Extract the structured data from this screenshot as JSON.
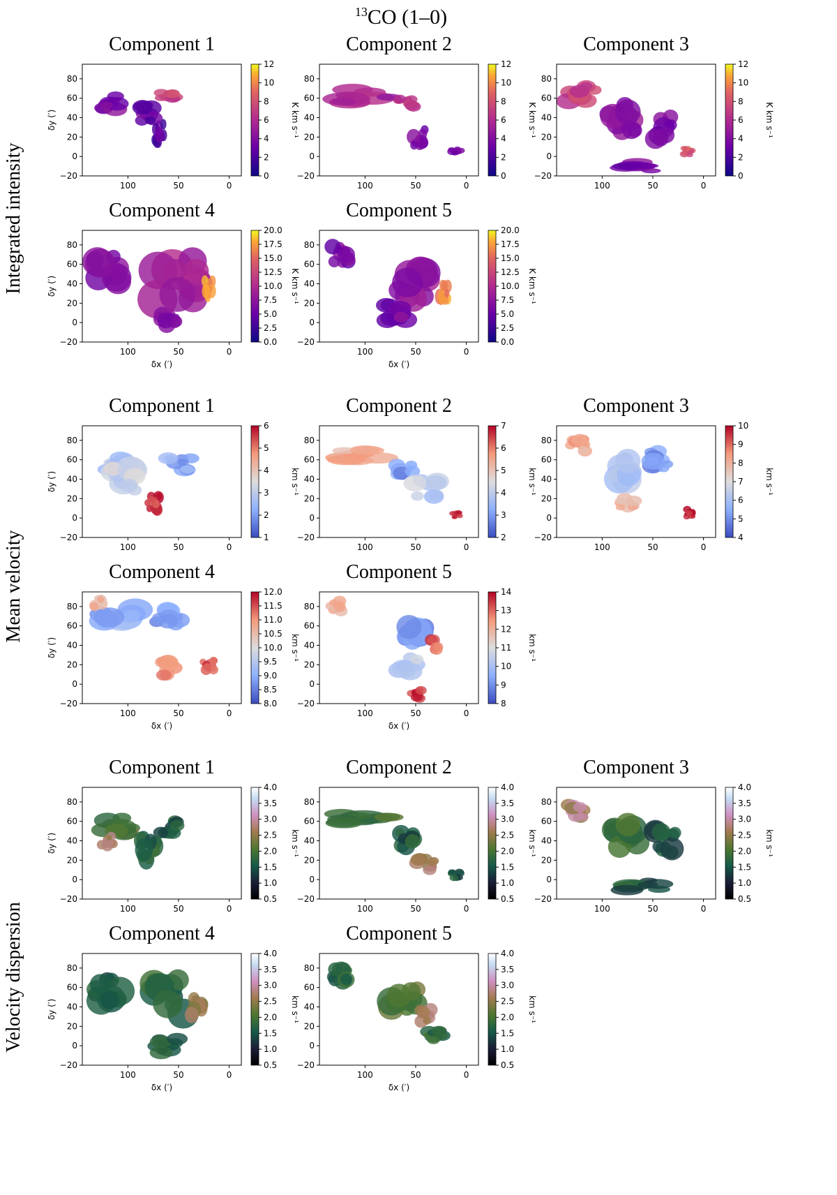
{
  "figure": {
    "title_sup": "13",
    "title_main": "CO (1–0)",
    "rows": [
      {
        "id": "integrated",
        "label": "Integrated intensity"
      },
      {
        "id": "velocity",
        "label": "Mean velocity"
      },
      {
        "id": "dispersion",
        "label": "Velocity dispersion"
      }
    ]
  },
  "chart_data": [
    {
      "type": "heatmap",
      "group": "integrated",
      "title": "Component 1",
      "xlabel": "δx (′)",
      "ylabel": "δy (′)",
      "xlim": [
        145,
        -12
      ],
      "ylim": [
        -20,
        95
      ],
      "xticks": [
        100,
        50,
        0
      ],
      "yticks": [
        -20,
        0,
        20,
        40,
        60,
        80
      ],
      "colormap": "plasma",
      "cbar": {
        "label": "K km s⁻¹",
        "range": [
          0,
          12
        ],
        "ticks": [
          "0",
          "2",
          "4",
          "6",
          "8",
          "10",
          "12"
        ]
      },
      "show_xlabel": false,
      "show_ylabel": true,
      "blobs": [
        [
          120,
          55,
          20,
          12,
          0.3
        ],
        [
          60,
          62,
          14,
          8,
          0.6
        ],
        [
          85,
          45,
          18,
          14,
          0.25
        ],
        [
          70,
          25,
          10,
          18,
          0.2
        ]
      ]
    },
    {
      "type": "heatmap",
      "group": "integrated",
      "title": "Component 2",
      "xlabel": "δx (′)",
      "ylabel": "δy (′)",
      "xlim": [
        145,
        -12
      ],
      "ylim": [
        -20,
        95
      ],
      "xticks": [
        100,
        50,
        0
      ],
      "yticks": [
        -20,
        0,
        20,
        40,
        60,
        80
      ],
      "colormap": "plasma",
      "cbar": {
        "label": "K km s⁻¹",
        "range": [
          0,
          12
        ],
        "ticks": [
          "0",
          "2",
          "4",
          "6",
          "8",
          "10",
          "12"
        ]
      },
      "show_xlabel": false,
      "show_ylabel": false,
      "blobs": [
        [
          100,
          62,
          40,
          12,
          0.45
        ],
        [
          60,
          55,
          14,
          10,
          0.55
        ],
        [
          45,
          20,
          12,
          14,
          0.3
        ],
        [
          10,
          5,
          8,
          6,
          0.3
        ]
      ]
    },
    {
      "type": "heatmap",
      "group": "integrated",
      "title": "Component 3",
      "xlabel": "δx (′)",
      "ylabel": "δy (′)",
      "xlim": [
        145,
        -12
      ],
      "ylim": [
        -20,
        95
      ],
      "xticks": [
        100,
        50,
        0
      ],
      "yticks": [
        -20,
        0,
        20,
        40,
        60,
        80
      ],
      "colormap": "plasma",
      "cbar": {
        "label": "K km s⁻¹",
        "range": [
          0,
          12
        ],
        "ticks": [
          "0",
          "2",
          "4",
          "6",
          "8",
          "10",
          "12"
        ]
      },
      "show_xlabel": false,
      "show_ylabel": false,
      "blobs": [
        [
          120,
          65,
          22,
          15,
          0.6
        ],
        [
          80,
          40,
          25,
          25,
          0.35
        ],
        [
          40,
          30,
          20,
          20,
          0.3
        ],
        [
          15,
          5,
          8,
          6,
          0.7
        ],
        [
          60,
          -10,
          30,
          8,
          0.3
        ]
      ]
    },
    {
      "type": "heatmap",
      "group": "integrated",
      "title": "Component 4",
      "xlabel": "δx (′)",
      "ylabel": "δy (′)",
      "xlim": [
        145,
        -12
      ],
      "ylim": [
        -20,
        95
      ],
      "xticks": [
        100,
        50,
        0
      ],
      "yticks": [
        -20,
        0,
        20,
        40,
        60,
        80
      ],
      "colormap": "plasma",
      "cbar": {
        "label": "K km s⁻¹",
        "range": [
          0,
          20
        ],
        "ticks": [
          "0.0",
          "2.5",
          "5.0",
          "7.5",
          "10.0",
          "12.5",
          "15.0",
          "17.5",
          "20.0"
        ]
      },
      "show_xlabel": true,
      "show_ylabel": true,
      "blobs": [
        [
          120,
          55,
          25,
          25,
          0.3
        ],
        [
          50,
          45,
          35,
          35,
          0.45
        ],
        [
          20,
          35,
          8,
          14,
          0.85
        ],
        [
          60,
          5,
          15,
          15,
          0.3
        ]
      ]
    },
    {
      "type": "heatmap",
      "group": "integrated",
      "title": "Component 5",
      "xlabel": "δx (′)",
      "ylabel": "δy (′)",
      "xlim": [
        145,
        -12
      ],
      "ylim": [
        -20,
        95
      ],
      "xticks": [
        100,
        50,
        0
      ],
      "yticks": [
        -20,
        0,
        20,
        40,
        60,
        80
      ],
      "colormap": "plasma",
      "cbar": {
        "label": "K km s⁻¹",
        "range": [
          0,
          20
        ],
        "ticks": [
          "0.0",
          "2.5",
          "5.0",
          "7.5",
          "10.0",
          "12.5",
          "15.0",
          "17.5",
          "20.0"
        ]
      },
      "show_xlabel": true,
      "show_ylabel": false,
      "blobs": [
        [
          125,
          70,
          15,
          15,
          0.3
        ],
        [
          50,
          40,
          30,
          30,
          0.4
        ],
        [
          22,
          30,
          8,
          14,
          0.85
        ],
        [
          70,
          10,
          20,
          15,
          0.3
        ]
      ]
    },
    {
      "type": "heatmap",
      "group": "velocity",
      "title": "Component 1",
      "xlabel": "δx (′)",
      "ylabel": "δy (′)",
      "xlim": [
        145,
        -12
      ],
      "ylim": [
        -20,
        95
      ],
      "xticks": [
        100,
        50,
        0
      ],
      "yticks": [
        -20,
        0,
        20,
        40,
        60,
        80
      ],
      "colormap": "coolwarm",
      "cbar": {
        "label": "km s⁻¹",
        "range": [
          1,
          6
        ],
        "ticks": [
          "1",
          "2",
          "3",
          "4",
          "5",
          "6"
        ]
      },
      "show_xlabel": false,
      "show_ylabel": true,
      "blobs": [
        [
          110,
          55,
          20,
          12,
          0.35
        ],
        [
          50,
          55,
          20,
          12,
          0.25
        ],
        [
          75,
          15,
          10,
          12,
          0.92
        ],
        [
          100,
          40,
          25,
          20,
          0.45
        ]
      ]
    },
    {
      "type": "heatmap",
      "group": "velocity",
      "title": "Component 2",
      "xlabel": "δx (′)",
      "ylabel": "δy (′)",
      "xlim": [
        145,
        -12
      ],
      "ylim": [
        -20,
        95
      ],
      "xticks": [
        100,
        50,
        0
      ],
      "yticks": [
        -20,
        0,
        20,
        40,
        60,
        80
      ],
      "colormap": "coolwarm",
      "cbar": {
        "label": "km s⁻¹",
        "range": [
          2,
          7
        ],
        "ticks": [
          "2",
          "3",
          "4",
          "5",
          "6",
          "7"
        ]
      },
      "show_xlabel": false,
      "show_ylabel": false,
      "blobs": [
        [
          100,
          65,
          35,
          10,
          0.68
        ],
        [
          60,
          50,
          15,
          12,
          0.2
        ],
        [
          40,
          30,
          20,
          15,
          0.4
        ],
        [
          10,
          3,
          7,
          5,
          0.95
        ]
      ]
    },
    {
      "type": "heatmap",
      "group": "velocity",
      "title": "Component 3",
      "xlabel": "δx (′)",
      "ylabel": "δy (′)",
      "xlim": [
        145,
        -12
      ],
      "ylim": [
        -20,
        95
      ],
      "xticks": [
        100,
        50,
        0
      ],
      "yticks": [
        -20,
        0,
        20,
        40,
        60,
        80
      ],
      "colormap": "coolwarm",
      "cbar": {
        "label": "km s⁻¹",
        "range": [
          4,
          10
        ],
        "ticks": [
          "4",
          "5",
          "6",
          "7",
          "8",
          "9",
          "10"
        ]
      },
      "show_xlabel": false,
      "show_ylabel": false,
      "blobs": [
        [
          125,
          75,
          15,
          12,
          0.7
        ],
        [
          80,
          50,
          25,
          25,
          0.35
        ],
        [
          40,
          60,
          20,
          15,
          0.2
        ],
        [
          75,
          15,
          15,
          10,
          0.65
        ],
        [
          15,
          5,
          8,
          7,
          0.95
        ]
      ]
    },
    {
      "type": "heatmap",
      "group": "velocity",
      "title": "Component 4",
      "xlabel": "δx (′)",
      "ylabel": "δy (′)",
      "xlim": [
        145,
        -12
      ],
      "ylim": [
        -20,
        95
      ],
      "xticks": [
        100,
        50,
        0
      ],
      "yticks": [
        -20,
        0,
        20,
        40,
        60,
        80
      ],
      "colormap": "coolwarm",
      "cbar": {
        "label": "km s⁻¹",
        "range": [
          8,
          12
        ],
        "ticks": [
          "8.0",
          "8.5",
          "9.0",
          "9.5",
          "10.0",
          "10.5",
          "11.0",
          "11.5",
          "12.0"
        ]
      },
      "show_xlabel": true,
      "show_ylabel": true,
      "blobs": [
        [
          110,
          65,
          30,
          20,
          0.25
        ],
        [
          60,
          70,
          20,
          15,
          0.2
        ],
        [
          55,
          15,
          20,
          15,
          0.75
        ],
        [
          20,
          20,
          10,
          10,
          0.9
        ],
        [
          130,
          85,
          10,
          10,
          0.65
        ]
      ]
    },
    {
      "type": "heatmap",
      "group": "velocity",
      "title": "Component 5",
      "xlabel": "δx (′)",
      "ylabel": "δy (′)",
      "xlim": [
        145,
        -12
      ],
      "ylim": [
        -20,
        95
      ],
      "xticks": [
        100,
        50,
        0
      ],
      "yticks": [
        -20,
        0,
        20,
        40,
        60,
        80
      ],
      "colormap": "coolwarm",
      "cbar": {
        "label": "km s⁻¹",
        "range": [
          8,
          14
        ],
        "ticks": [
          "8",
          "9",
          "10",
          "11",
          "12",
          "13",
          "14"
        ]
      },
      "show_xlabel": true,
      "show_ylabel": false,
      "blobs": [
        [
          130,
          80,
          12,
          10,
          0.65
        ],
        [
          50,
          55,
          25,
          25,
          0.2
        ],
        [
          30,
          40,
          10,
          10,
          0.85
        ],
        [
          60,
          20,
          20,
          15,
          0.4
        ],
        [
          50,
          -10,
          10,
          8,
          0.9
        ]
      ]
    },
    {
      "type": "heatmap",
      "group": "dispersion",
      "title": "Component 1",
      "xlabel": "δx (′)",
      "ylabel": "δy (′)",
      "xlim": [
        145,
        -12
      ],
      "ylim": [
        -20,
        95
      ],
      "xticks": [
        100,
        50,
        0
      ],
      "yticks": [
        -20,
        0,
        20,
        40,
        60,
        80
      ],
      "colormap": "cubehelix",
      "cbar": {
        "label": "km s⁻¹",
        "range": [
          0.5,
          4.0
        ],
        "ticks": [
          "0.5",
          "1.0",
          "1.5",
          "2.0",
          "2.5",
          "3.0",
          "3.5",
          "4.0"
        ]
      },
      "show_xlabel": false,
      "show_ylabel": true,
      "blobs": [
        [
          110,
          55,
          25,
          15,
          0.45
        ],
        [
          60,
          55,
          15,
          12,
          0.3
        ],
        [
          80,
          30,
          15,
          20,
          0.35
        ],
        [
          120,
          40,
          10,
          10,
          0.65
        ]
      ]
    },
    {
      "type": "heatmap",
      "group": "dispersion",
      "title": "Component 2",
      "xlabel": "δx (′)",
      "ylabel": "δy (′)",
      "xlim": [
        145,
        -12
      ],
      "ylim": [
        -20,
        95
      ],
      "xticks": [
        100,
        50,
        0
      ],
      "yticks": [
        -20,
        0,
        20,
        40,
        60,
        80
      ],
      "colormap": "cubehelix",
      "cbar": {
        "label": "km s⁻¹",
        "range": [
          0.5,
          4.0
        ],
        "ticks": [
          "0.5",
          "1.0",
          "1.5",
          "2.0",
          "2.5",
          "3.0",
          "3.5",
          "4.0"
        ]
      },
      "show_xlabel": false,
      "show_ylabel": false,
      "blobs": [
        [
          100,
          65,
          40,
          12,
          0.45
        ],
        [
          60,
          40,
          15,
          15,
          0.3
        ],
        [
          40,
          15,
          15,
          12,
          0.6
        ],
        [
          10,
          5,
          8,
          6,
          0.3
        ]
      ]
    },
    {
      "type": "heatmap",
      "group": "dispersion",
      "title": "Component 3",
      "xlabel": "δx (′)",
      "ylabel": "δy (′)",
      "xlim": [
        145,
        -12
      ],
      "ylim": [
        -20,
        95
      ],
      "xticks": [
        100,
        50,
        0
      ],
      "yticks": [
        -20,
        0,
        20,
        40,
        60,
        80
      ],
      "colormap": "cubehelix",
      "cbar": {
        "label": "km s⁻¹",
        "range": [
          0.5,
          4.0
        ],
        "ticks": [
          "0.5",
          "1.0",
          "1.5",
          "2.0",
          "2.5",
          "3.0",
          "3.5",
          "4.0"
        ]
      },
      "show_xlabel": false,
      "show_ylabel": false,
      "blobs": [
        [
          125,
          70,
          15,
          12,
          0.65
        ],
        [
          80,
          45,
          25,
          25,
          0.4
        ],
        [
          40,
          40,
          20,
          20,
          0.3
        ],
        [
          60,
          -5,
          30,
          10,
          0.3
        ]
      ]
    },
    {
      "type": "heatmap",
      "group": "dispersion",
      "title": "Component 4",
      "xlabel": "δx (′)",
      "ylabel": "δy (′)",
      "xlim": [
        145,
        -12
      ],
      "ylim": [
        -20,
        95
      ],
      "xticks": [
        100,
        50,
        0
      ],
      "yticks": [
        -20,
        0,
        20,
        40,
        60,
        80
      ],
      "colormap": "cubehelix",
      "cbar": {
        "label": "km s⁻¹",
        "range": [
          0.5,
          4.0
        ],
        "ticks": [
          "0.5",
          "1.0",
          "1.5",
          "2.0",
          "2.5",
          "3.0",
          "3.5",
          "4.0"
        ]
      },
      "show_xlabel": true,
      "show_ylabel": true,
      "blobs": [
        [
          120,
          60,
          25,
          25,
          0.3
        ],
        [
          60,
          50,
          30,
          30,
          0.35
        ],
        [
          30,
          40,
          12,
          15,
          0.55
        ],
        [
          60,
          0,
          20,
          12,
          0.3
        ]
      ]
    },
    {
      "type": "heatmap",
      "group": "dispersion",
      "title": "Component 5",
      "xlabel": "δx (′)",
      "ylabel": "δy (′)",
      "xlim": [
        145,
        -12
      ],
      "ylim": [
        -20,
        95
      ],
      "xticks": [
        100,
        50,
        0
      ],
      "yticks": [
        -20,
        0,
        20,
        40,
        60,
        80
      ],
      "colormap": "cubehelix",
      "cbar": {
        "label": "km s⁻¹",
        "range": [
          0.5,
          4.0
        ],
        "ticks": [
          "0.5",
          "1.0",
          "1.5",
          "2.0",
          "2.5",
          "3.0",
          "3.5",
          "4.0"
        ]
      },
      "show_xlabel": true,
      "show_ylabel": false,
      "blobs": [
        [
          125,
          70,
          15,
          15,
          0.35
        ],
        [
          60,
          45,
          25,
          25,
          0.45
        ],
        [
          40,
          30,
          12,
          12,
          0.65
        ],
        [
          30,
          10,
          15,
          10,
          0.35
        ]
      ]
    }
  ]
}
